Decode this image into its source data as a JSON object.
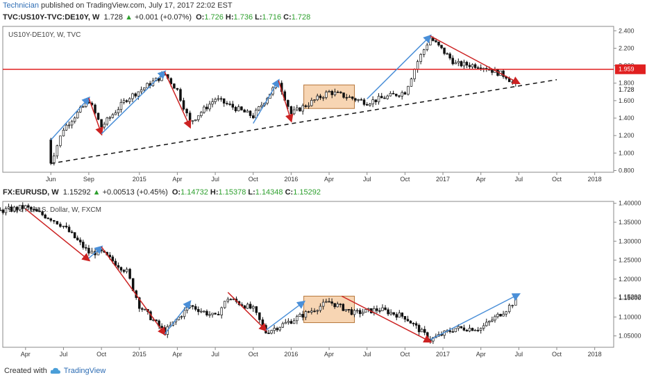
{
  "header": {
    "author": "Technician",
    "published": " published on TradingView.com, July 17, 2017 22:02 EST"
  },
  "quote1": {
    "symbol": "TVC:US10Y-TVC:DE10Y, W",
    "last": "1.728",
    "change": "+0.001 (+0.07%)",
    "o": "1.726",
    "h": "1.736",
    "l": "1.716",
    "c": "1.728"
  },
  "quote2": {
    "symbol": "FX:EURUSD, W",
    "last": "1.15292",
    "change": "+0.00513 (+0.45%)",
    "o": "1.14732",
    "h": "1.15378",
    "l": "1.14348",
    "c": "1.15292"
  },
  "footer": {
    "created_with": "Created with",
    "brand": "TradingView"
  },
  "colors": {
    "up_arrow": "#4a8fd8",
    "down_arrow": "#cc2222",
    "level_line": "#e02020",
    "box": "#f4c79a",
    "candle": "#111111"
  },
  "chart_data": [
    {
      "type": "candlestick",
      "title": "US10Y-DE10Y, W, TVC",
      "x_ticks": [
        "Jun",
        "Sep",
        "2015",
        "Apr",
        "Jul",
        "Oct",
        "2016",
        "Apr",
        "Jul",
        "Oct",
        "2017",
        "Apr",
        "Jul",
        "Oct",
        "2018"
      ],
      "y_ticks": [
        "2.400",
        "2.200",
        "2.000",
        "1.800",
        "1.600",
        "1.400",
        "1.200",
        "1.000",
        "0.800"
      ],
      "ylim": [
        0.78,
        2.45
      ],
      "last_price_label": "1.728",
      "horizontal_level": {
        "value": 1.959,
        "label": "1.959"
      },
      "dashed_trendline": [
        [
          "Jun 2014",
          0.88
        ],
        [
          "Oct 2017",
          1.84
        ]
      ],
      "consolidation_box": {
        "from": "Feb 2016",
        "to": "Jun 2016",
        "low": 1.51,
        "high": 1.78
      },
      "trend_arrows": [
        {
          "dir": "up",
          "from": [
            "Jun 2014",
            1.15
          ],
          "to": [
            "Sep 2014",
            1.63
          ]
        },
        {
          "dir": "down",
          "from": [
            "Sep 2014",
            1.63
          ],
          "to": [
            "Oct 2014",
            1.22
          ]
        },
        {
          "dir": "up",
          "from": [
            "Oct 2014",
            1.22
          ],
          "to": [
            "Mar 2015",
            1.93
          ]
        },
        {
          "dir": "down",
          "from": [
            "Mar 2015",
            1.93
          ],
          "to": [
            "May 2015",
            1.3
          ]
        },
        {
          "dir": "up",
          "from": [
            "Oct 2015",
            1.34
          ],
          "to": [
            "Dec 2015",
            1.83
          ]
        },
        {
          "dir": "down",
          "from": [
            "Dec 2015",
            1.83
          ],
          "to": [
            "Jan 2016",
            1.37
          ]
        },
        {
          "dir": "up",
          "from": [
            "Jul 2016",
            1.62
          ],
          "to": [
            "Dec 2016",
            2.34
          ]
        },
        {
          "dir": "down",
          "from": [
            "Dec 2016",
            2.34
          ],
          "to": [
            "Jul 2017",
            1.8
          ]
        }
      ],
      "keypoints": [
        [
          "Jun 2014",
          1.15
        ],
        [
          "Jun 2014",
          0.9
        ],
        [
          "Jul 2014",
          1.28
        ],
        [
          "Sep 2014",
          1.6
        ],
        [
          "Oct 2014",
          1.3
        ],
        [
          "Dec 2014",
          1.62
        ],
        [
          "Mar 2015",
          1.9
        ],
        [
          "Apr 2015",
          1.72
        ],
        [
          "May 2015",
          1.35
        ],
        [
          "Jul 2015",
          1.62
        ],
        [
          "Oct 2015",
          1.42
        ],
        [
          "Dec 2015",
          1.82
        ],
        [
          "Jan 2016",
          1.45
        ],
        [
          "Apr 2016",
          1.7
        ],
        [
          "Jul 2016",
          1.58
        ],
        [
          "Oct 2016",
          1.7
        ],
        [
          "Nov 2016",
          2.05
        ],
        [
          "Dec 2016",
          2.32
        ],
        [
          "Feb 2017",
          2.02
        ],
        [
          "Apr 2017",
          2.0
        ],
        [
          "Jun 2017",
          1.88
        ],
        [
          "Jul 2017",
          1.73
        ]
      ]
    },
    {
      "type": "candlestick",
      "title": "Euro Fx/U.S. Dollar, W, FXCM",
      "x_ticks": [
        "Apr",
        "Jul",
        "Oct",
        "2015",
        "Apr",
        "Jul",
        "Oct",
        "2016",
        "Apr",
        "Jul",
        "Oct",
        "2017",
        "Apr",
        "Jul",
        "Oct",
        "2018"
      ],
      "y_ticks": [
        "1.40000",
        "1.35000",
        "1.30000",
        "1.25000",
        "1.20000",
        "1.15000",
        "1.10000",
        "1.05000"
      ],
      "ylim": [
        1.02,
        1.405
      ],
      "last_price_label": "1.15292",
      "consolidation_box": {
        "from": "Feb 2016",
        "to": "Jun 2016",
        "low": 1.085,
        "high": 1.155
      },
      "trend_arrows": [
        {
          "dir": "down",
          "from": [
            "Apr 2014",
            1.385
          ],
          "to": [
            "Sep 2014",
            1.25
          ]
        },
        {
          "dir": "up",
          "from": [
            "Sep 2014",
            1.255
          ],
          "to": [
            "Oct 2014",
            1.285
          ]
        },
        {
          "dir": "down",
          "from": [
            "Oct 2014",
            1.285
          ],
          "to": [
            "Mar 2015",
            1.055
          ]
        },
        {
          "dir": "up",
          "from": [
            "Mar 2015",
            1.055
          ],
          "to": [
            "May 2015",
            1.14
          ]
        },
        {
          "dir": "down",
          "from": [
            "Aug 2015",
            1.165
          ],
          "to": [
            "Nov 2015",
            1.065
          ]
        },
        {
          "dir": "up",
          "from": [
            "Nov 2015",
            1.065
          ],
          "to": [
            "Feb 2016",
            1.14
          ]
        },
        {
          "dir": "down",
          "from": [
            "May 2016",
            1.155
          ],
          "to": [
            "Dec 2016",
            1.035
          ]
        },
        {
          "dir": "up",
          "from": [
            "Dec 2016",
            1.04
          ],
          "to": [
            "Jul 2017",
            1.16
          ]
        }
      ],
      "keypoints": [
        [
          "Feb 2014",
          1.38
        ],
        [
          "Apr 2014",
          1.39
        ],
        [
          "Jun 2014",
          1.36
        ],
        [
          "Jul 2014",
          1.34
        ],
        [
          "Sep 2014",
          1.27
        ],
        [
          "Oct 2014",
          1.27
        ],
        [
          "Dec 2014",
          1.22
        ],
        [
          "Jan 2015",
          1.13
        ],
        [
          "Mar 2015",
          1.06
        ],
        [
          "May 2015",
          1.13
        ],
        [
          "Jul 2015",
          1.1
        ],
        [
          "Aug 2015",
          1.15
        ],
        [
          "Oct 2015",
          1.12
        ],
        [
          "Nov 2015",
          1.06
        ],
        [
          "Jan 2016",
          1.09
        ],
        [
          "Apr 2016",
          1.14
        ],
        [
          "Jun 2016",
          1.11
        ],
        [
          "Aug 2016",
          1.12
        ],
        [
          "Oct 2016",
          1.1
        ],
        [
          "Dec 2016",
          1.04
        ],
        [
          "Feb 2017",
          1.07
        ],
        [
          "Apr 2017",
          1.07
        ],
        [
          "Jun 2017",
          1.12
        ],
        [
          "Jul 2017",
          1.153
        ]
      ]
    }
  ]
}
